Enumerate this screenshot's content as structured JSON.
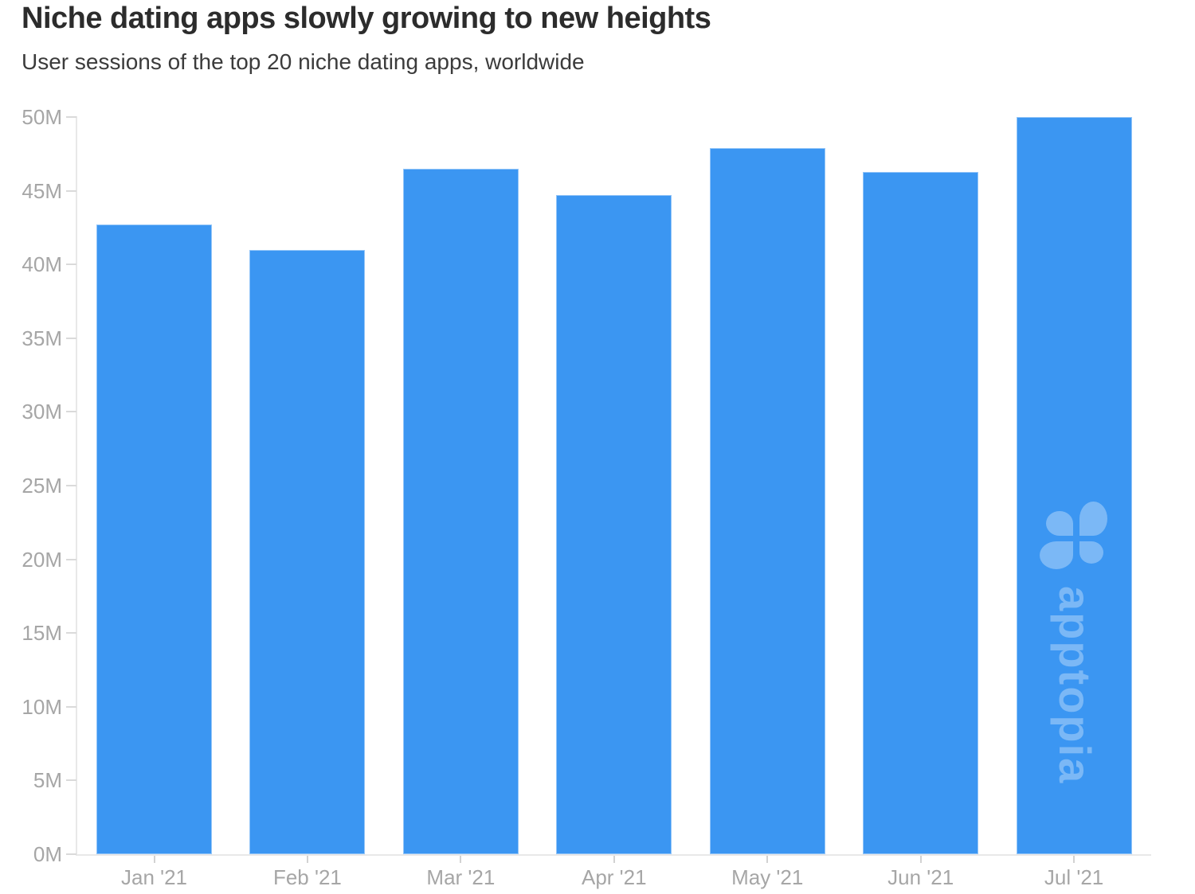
{
  "header": {
    "title": "Niche dating apps slowly growing to new heights",
    "subtitle": "User sessions of the top 20 niche dating apps, worldwide"
  },
  "chart_data": {
    "type": "bar",
    "title": "Niche dating apps slowly growing to new heights",
    "subtitle": "User sessions of the top 20 niche dating apps, worldwide",
    "categories": [
      "Jan '21",
      "Feb '21",
      "Mar '21",
      "Apr '21",
      "May '21",
      "Jun '21",
      "Jul '21"
    ],
    "values": [
      42.7,
      41.0,
      46.5,
      44.7,
      47.9,
      46.3,
      50.0
    ],
    "values_unit": "millions of user sessions",
    "xlabel": "",
    "ylabel": "",
    "ylim": [
      0,
      50
    ],
    "ytick_step": 5,
    "ytick_labels": [
      "0M",
      "5M",
      "10M",
      "15M",
      "20M",
      "25M",
      "30M",
      "35M",
      "40M",
      "45M",
      "50M"
    ],
    "grid": "off",
    "legend": "none"
  },
  "watermark": {
    "brand": "apptopia",
    "logo": "clover-icon"
  },
  "colors": {
    "background": "#ffffff",
    "bar": "#3b96f2",
    "bar_border": "rgba(255,255,255,0.45)",
    "axis_line": "#e8e8e8",
    "y_tick": "#dadada",
    "x_tick": "#d2d2d2",
    "axis_label": "#a6a6a6",
    "title": "#2c2c2c",
    "subtitle": "#3b3b3b",
    "watermark": "rgba(255,255,255,0.33)"
  }
}
